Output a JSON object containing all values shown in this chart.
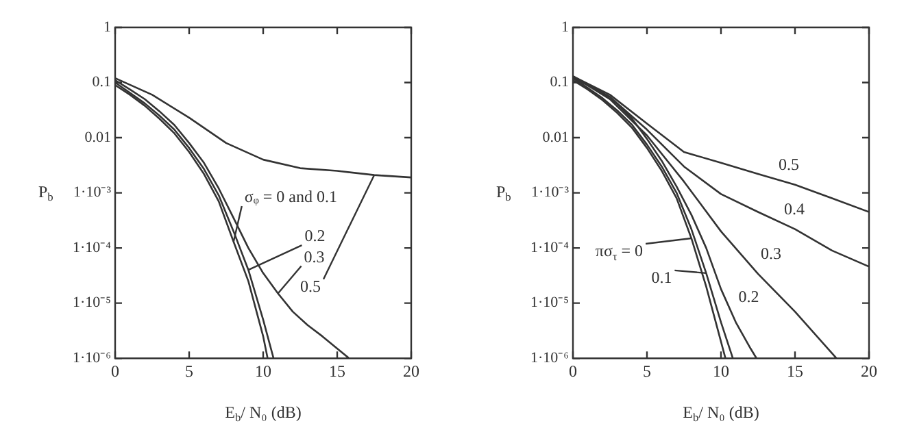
{
  "chart_data": [
    {
      "type": "line",
      "xlabel": "E$_{b}$/ N₀ (dB)",
      "ylabel": "P$_{b}$",
      "log": "y",
      "xlim": [
        0,
        20
      ],
      "xticks": [
        0,
        5,
        10,
        15,
        20
      ],
      "ylim": [
        1e-06,
        1
      ],
      "yticks": [
        {
          "value": 1,
          "label": "1"
        },
        {
          "value": 0.1,
          "label": "0.1"
        },
        {
          "value": 0.01,
          "label": "0.01"
        },
        {
          "value": 0.001,
          "label": "1·10⁻³"
        },
        {
          "value": 0.0001,
          "label": "1·10⁻⁴"
        },
        {
          "value": 1e-05,
          "label": "1·10⁻⁵"
        },
        {
          "value": 1e-06,
          "label": "1·10⁻⁶"
        }
      ],
      "marker": "none",
      "legend": false,
      "series": [
        {
          "color": "#333333",
          "x": [
            0,
            1,
            2,
            3,
            4,
            5,
            6,
            7,
            8,
            9,
            10,
            10.3
          ],
          "values": [
            0.09,
            0.06,
            0.038,
            0.022,
            0.012,
            0.0055,
            0.0022,
            0.0007,
            0.00013,
            2.5e-05,
            2.5e-06,
            1e-06
          ]
        },
        {
          "color": "#333333",
          "x": [
            0,
            1,
            2,
            3,
            4,
            5,
            6,
            7,
            8,
            9,
            10,
            10.7
          ],
          "values": [
            0.1,
            0.065,
            0.042,
            0.025,
            0.014,
            0.0065,
            0.0027,
            0.0009,
            0.0002,
            4e-05,
            5e-06,
            1e-06
          ]
        },
        {
          "color": "#333333",
          "x": [
            0,
            1,
            2,
            3,
            4,
            5,
            6,
            7,
            8,
            9,
            10,
            11,
            12,
            13,
            14,
            15,
            15.8
          ],
          "values": [
            0.11,
            0.075,
            0.05,
            0.03,
            0.017,
            0.008,
            0.0035,
            0.0012,
            0.00035,
            0.0001,
            3.5e-05,
            1.5e-05,
            7e-06,
            4e-06,
            2.5e-06,
            1.5e-06,
            1e-06
          ]
        },
        {
          "color": "#333333",
          "x": [
            0,
            2.5,
            5,
            7.5,
            10,
            12.5,
            15,
            17.5,
            20
          ],
          "values": [
            0.12,
            0.06,
            0.023,
            0.008,
            0.004,
            0.0028,
            0.0025,
            0.0021,
            0.0019
          ]
        }
      ],
      "annotations": [
        {
          "text": "σᵩ = 0 and 0.1",
          "x": 8,
          "y": 0.00013
        },
        {
          "text": "0.2",
          "x": 9,
          "y": 4e-05
        },
        {
          "text": "0.3",
          "x": 11,
          "y": 1.5e-05
        },
        {
          "text": "0.5",
          "x": 17.5,
          "y": 0.0021
        }
      ]
    },
    {
      "type": "line",
      "xlabel": "E$_{b}$/ N₀ (dB)",
      "ylabel": "P$_{b}$",
      "log": "y",
      "xlim": [
        0,
        20
      ],
      "xticks": [
        0,
        5,
        10,
        15,
        20
      ],
      "ylim": [
        1e-06,
        1
      ],
      "yticks": [
        {
          "value": 1,
          "label": "1"
        },
        {
          "value": 0.1,
          "label": "0.1"
        },
        {
          "value": 0.01,
          "label": "0.01"
        },
        {
          "value": 0.001,
          "label": "1·10⁻³"
        },
        {
          "value": 0.0001,
          "label": "1·10⁻⁴"
        },
        {
          "value": 1e-05,
          "label": "1·10⁻⁵"
        },
        {
          "value": 1e-06,
          "label": "1·10⁻⁶"
        }
      ],
      "marker": "none",
      "legend": false,
      "series": [
        {
          "color": "#333333",
          "x": [
            0,
            1,
            2,
            3,
            4,
            5,
            6,
            7,
            8,
            9,
            10,
            10.3
          ],
          "values": [
            0.11,
            0.075,
            0.048,
            0.028,
            0.015,
            0.0065,
            0.0025,
            0.0008,
            0.00015,
            2e-05,
            2e-06,
            1e-06
          ]
        },
        {
          "color": "#333333",
          "x": [
            0,
            1,
            2,
            3,
            4,
            5,
            6,
            7,
            8,
            9,
            10,
            10.8
          ],
          "values": [
            0.12,
            0.08,
            0.052,
            0.031,
            0.017,
            0.0075,
            0.003,
            0.001,
            0.00022,
            3.5e-05,
            4.5e-06,
            1e-06
          ]
        },
        {
          "color": "#333333",
          "x": [
            0,
            1,
            2,
            3,
            4,
            5,
            6,
            7,
            8,
            9,
            10,
            11,
            12,
            12.4
          ],
          "values": [
            0.12,
            0.09,
            0.063,
            0.041,
            0.022,
            0.0095,
            0.0038,
            0.0013,
            0.0004,
            0.0001,
            1.8e-05,
            4.5e-06,
            1.5e-06,
            1e-06
          ]
        },
        {
          "color": "#333333",
          "x": [
            0,
            2.5,
            5,
            7.5,
            10,
            12.5,
            15,
            17.8
          ],
          "values": [
            0.13,
            0.05,
            0.011,
            0.0016,
            0.0002,
            3.4e-05,
            7e-06,
            1e-06
          ]
        },
        {
          "color": "#333333",
          "x": [
            0,
            2.5,
            5,
            7.5,
            10,
            12.5,
            15,
            17.5,
            20
          ],
          "values": [
            0.13,
            0.055,
            0.014,
            0.003,
            0.00095,
            0.00045,
            0.00022,
            9e-05,
            4.6e-05
          ]
        },
        {
          "color": "#333333",
          "x": [
            0,
            2.5,
            5,
            7.5,
            10,
            12.5,
            15,
            17.5,
            20
          ],
          "values": [
            0.13,
            0.06,
            0.018,
            0.0055,
            0.0035,
            0.0022,
            0.0014,
            0.0008,
            0.00045
          ]
        }
      ],
      "annotations": [
        {
          "text": "0.5",
          "x": 15,
          "y": 0.0014
        },
        {
          "text": "0.4",
          "x": 15,
          "y": 0.00022
        },
        {
          "text": "0.3",
          "x": 12.5,
          "y": 3.4e-05
        },
        {
          "text": "0.2",
          "x": 11,
          "y": 4.5e-06
        },
        {
          "text": "πσ$_{τ}$ = 0",
          "x": 8,
          "y": 0.00015
        },
        {
          "text": "0.1",
          "x": 9,
          "y": 3.5e-05
        }
      ]
    }
  ]
}
